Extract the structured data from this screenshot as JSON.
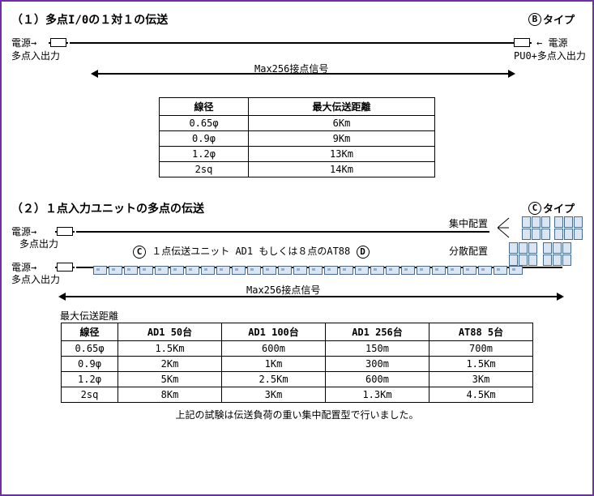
{
  "border_color": "#7030a0",
  "section1": {
    "title": "（１）多点I/0の１対１の伝送",
    "type_badge": {
      "letter": "B",
      "suffix": "タイプ"
    },
    "left": {
      "power": "電源",
      "arrow": "→",
      "sub": "多点入出力"
    },
    "right": {
      "power": "電源",
      "arrow": "←",
      "sub": "PU0+多点入出力"
    },
    "span_label": "Max256接点信号",
    "table": {
      "headers": [
        "線径",
        "最大伝送距離"
      ],
      "rows": [
        [
          "0.65φ",
          "6Km"
        ],
        [
          "0.9φ",
          "9Km"
        ],
        [
          "1.2φ",
          "13Km"
        ],
        [
          "2sq",
          "14Km"
        ]
      ]
    }
  },
  "section2": {
    "title": "（２）１点入力ユニットの多点の伝送",
    "type_badge": {
      "letter": "C",
      "suffix": "タイプ"
    },
    "left1": {
      "power": "電源",
      "arrow": "→",
      "sub": "多点出力"
    },
    "left2": {
      "power": "電源",
      "arrow": "→",
      "sub": "多点入出力"
    },
    "mid_label": {
      "c": "C",
      "text": "１点伝送ユニット AD1 もしくは８点のAT88",
      "d": "D"
    },
    "cluster_labels": {
      "concentrated": "集中配置",
      "distributed": "分散配置"
    },
    "span_label": "Max256接点信号",
    "table_title": "最大伝送距離",
    "table": {
      "headers": [
        "線径",
        "AD1 50台",
        "AD1 100台",
        "AD1 256台",
        "AT88 5台"
      ],
      "rows": [
        [
          "0.65φ",
          "1.5Km",
          "600m",
          "150m",
          "700m"
        ],
        [
          "0.9φ",
          "2Km",
          "1Km",
          "300m",
          "1.5Km"
        ],
        [
          "1.2φ",
          "5Km",
          "2.5Km",
          "600m",
          "3Km"
        ],
        [
          "2sq",
          "8Km",
          "3Km",
          "1.3Km",
          "4.5Km"
        ]
      ]
    },
    "footnote": "上記の試験は伝送負荷の重い集中配置型で行いました。"
  }
}
